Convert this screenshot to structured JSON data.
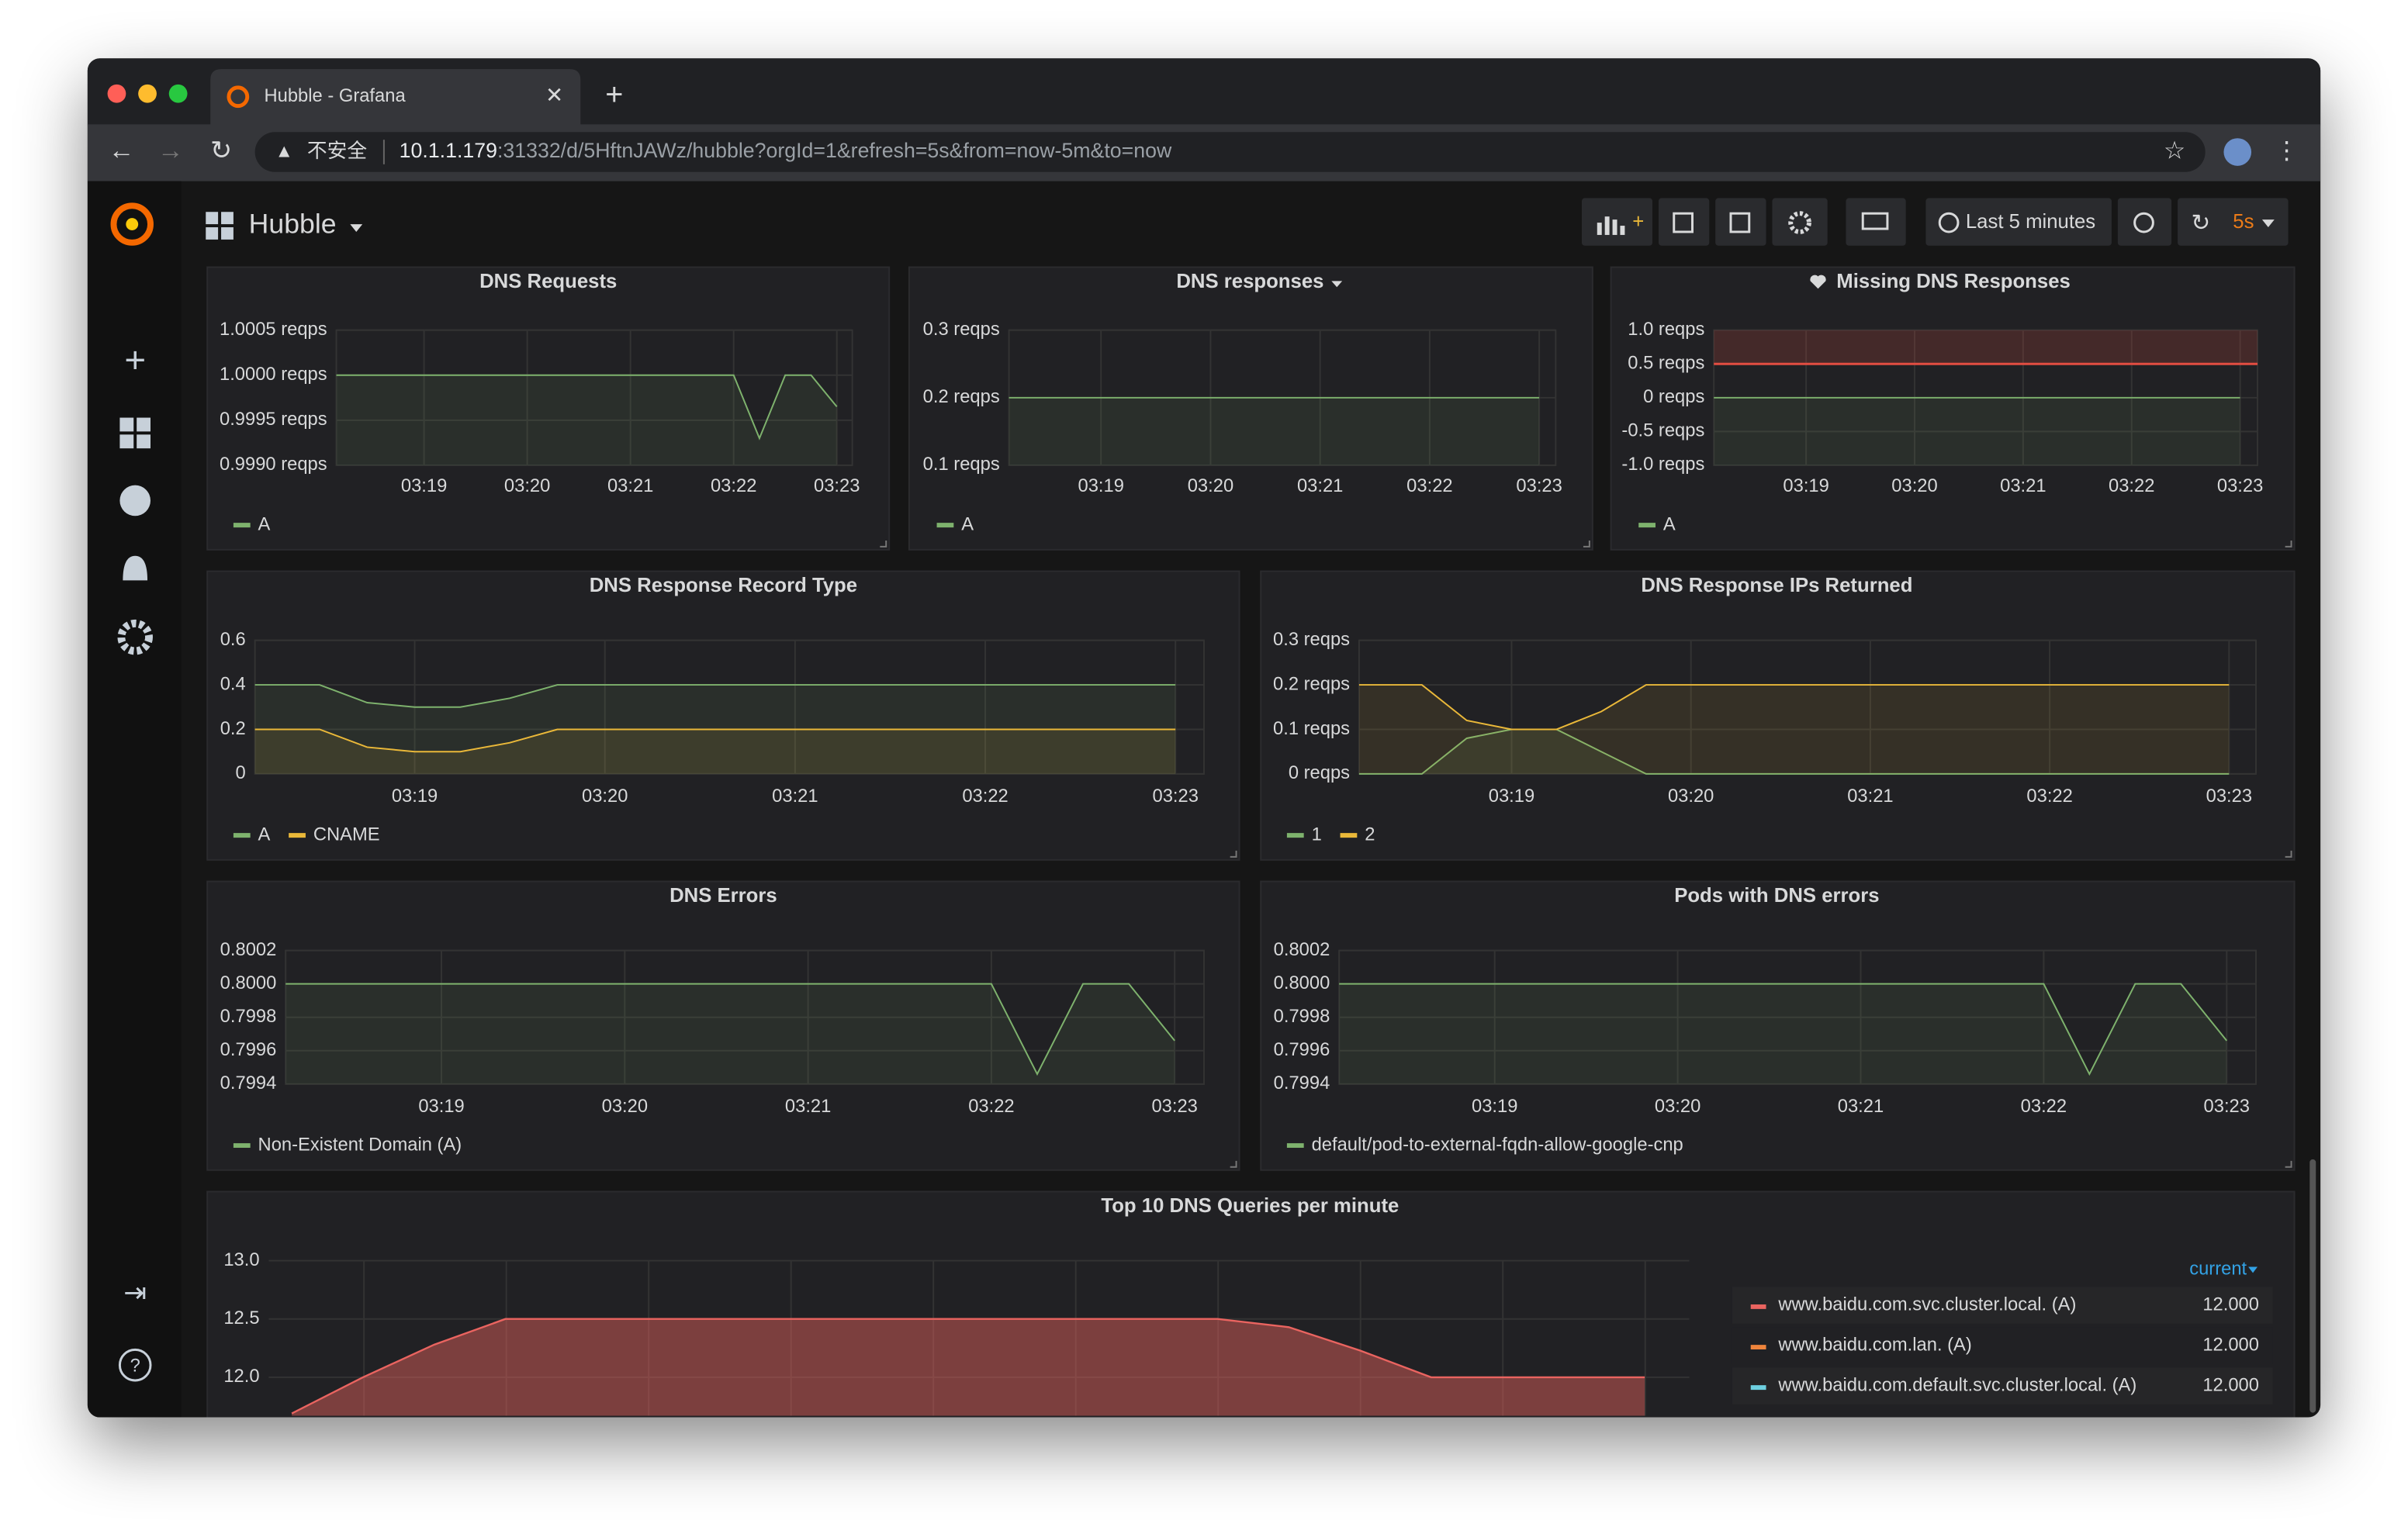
{
  "browser": {
    "tab_title": "Hubble - Grafana",
    "security": "不安全",
    "url_host": "10.1.1.179",
    "url_rest": ":31332/d/5HftnJAWz/hubble?orgId=1&refresh=5s&from=now-5m&to=now"
  },
  "dashboard": {
    "title": "Hubble",
    "time_range": "Last 5 minutes",
    "refresh": "5s"
  },
  "chart_data": [
    {
      "type": "line",
      "title": "DNS Requests",
      "xlim": [
        198.15,
        203.15
      ],
      "ylim": [
        0.999,
        1.0005
      ],
      "xticks": [
        {
          "value": 199,
          "label": "03:19"
        },
        {
          "value": 200,
          "label": "03:20"
        },
        {
          "value": 201,
          "label": "03:21"
        },
        {
          "value": 202,
          "label": "03:22"
        },
        {
          "value": 203,
          "label": "03:23"
        }
      ],
      "yticks": [
        {
          "value": 1.0005,
          "label": "1.0005 reqps"
        },
        {
          "value": 1.0,
          "label": "1.0000 reqps"
        },
        {
          "value": 0.9995,
          "label": "0.9995 reqps"
        },
        {
          "value": 0.999,
          "label": "0.9990 reqps"
        }
      ],
      "x": [
        198.15,
        202,
        202.25,
        202.5,
        202.75,
        203
      ],
      "series": [
        {
          "name": "A",
          "color": "#7eb26d",
          "values": [
            1.0,
            1.0,
            0.9993,
            1.0,
            1.0,
            0.99965
          ]
        }
      ]
    },
    {
      "type": "line",
      "title": "DNS responses",
      "xlim": [
        198.16,
        203.15
      ],
      "ylim": [
        0.1,
        0.3
      ],
      "xticks": [
        {
          "value": 199,
          "label": "03:19"
        },
        {
          "value": 200,
          "label": "03:20"
        },
        {
          "value": 201,
          "label": "03:21"
        },
        {
          "value": 202,
          "label": "03:22"
        },
        {
          "value": 203,
          "label": "03:23"
        }
      ],
      "yticks": [
        {
          "value": 0.3,
          "label": "0.3 reqps"
        },
        {
          "value": 0.2,
          "label": "0.2 reqps"
        },
        {
          "value": 0.1,
          "label": "0.1 reqps"
        }
      ],
      "x": [
        198.16,
        203
      ],
      "series": [
        {
          "name": "A",
          "color": "#7eb26d",
          "values": [
            0.2,
            0.2
          ]
        }
      ]
    },
    {
      "type": "line",
      "title": "Missing DNS Responses",
      "xlim": [
        198.15,
        203.16
      ],
      "ylim": [
        -1.0,
        1.0
      ],
      "xticks": [
        {
          "value": 199,
          "label": "03:19"
        },
        {
          "value": 200,
          "label": "03:20"
        },
        {
          "value": 201,
          "label": "03:21"
        },
        {
          "value": 202,
          "label": "03:22"
        },
        {
          "value": 203,
          "label": "03:23"
        }
      ],
      "yticks": [
        {
          "value": 1.0,
          "label": "1.0 reqps"
        },
        {
          "value": 0.5,
          "label": "0.5 reqps"
        },
        {
          "value": 0,
          "label": "0 reqps"
        },
        {
          "value": -0.5,
          "label": "-0.5 reqps"
        },
        {
          "value": -1.0,
          "label": "-1.0 reqps"
        }
      ],
      "threshold": {
        "value": 0.5,
        "color": "#e24d42"
      },
      "x": [
        198.15,
        203
      ],
      "series": [
        {
          "name": "A",
          "color": "#7eb26d",
          "values": [
            0,
            0
          ]
        }
      ]
    },
    {
      "type": "line",
      "title": "DNS Response Record Type",
      "xlim": [
        198.16,
        203.15
      ],
      "ylim": [
        0,
        0.6
      ],
      "xticks": [
        {
          "value": 199,
          "label": "03:19"
        },
        {
          "value": 200,
          "label": "03:20"
        },
        {
          "value": 201,
          "label": "03:21"
        },
        {
          "value": 202,
          "label": "03:22"
        },
        {
          "value": 203,
          "label": "03:23"
        }
      ],
      "yticks": [
        0.6,
        0.4,
        0.2,
        0
      ],
      "x": [
        198.16,
        198.5,
        198.75,
        199,
        199.24,
        199.5,
        199.75,
        203
      ],
      "series": [
        {
          "name": "A",
          "color": "#7eb26d",
          "values": [
            0.4,
            0.4,
            0.32,
            0.3,
            0.3,
            0.34,
            0.4,
            0.4
          ]
        },
        {
          "name": "CNAME",
          "color": "#eab839",
          "values": [
            0.2,
            0.2,
            0.12,
            0.1,
            0.1,
            0.14,
            0.2,
            0.2
          ]
        }
      ]
    },
    {
      "type": "line",
      "title": "DNS Response IPs Returned",
      "xlim": [
        198.15,
        203.15
      ],
      "ylim": [
        0,
        0.3
      ],
      "xticks": [
        {
          "value": 199,
          "label": "03:19"
        },
        {
          "value": 200,
          "label": "03:20"
        },
        {
          "value": 201,
          "label": "03:21"
        },
        {
          "value": 202,
          "label": "03:22"
        },
        {
          "value": 203,
          "label": "03:23"
        }
      ],
      "yticks": [
        {
          "value": 0.3,
          "label": "0.3 reqps"
        },
        {
          "value": 0.2,
          "label": "0.2 reqps"
        },
        {
          "value": 0.1,
          "label": "0.1 reqps"
        },
        {
          "value": 0,
          "label": "0 reqps"
        }
      ],
      "x": [
        198.15,
        198.5,
        198.75,
        199,
        199.25,
        199.5,
        199.75,
        203
      ],
      "series": [
        {
          "name": "1",
          "color": "#7eb26d",
          "values": [
            0,
            0,
            0.08,
            0.1,
            0.1,
            0.05,
            0,
            0
          ]
        },
        {
          "name": "2",
          "color": "#eab839",
          "values": [
            0.2,
            0.2,
            0.12,
            0.1,
            0.1,
            0.14,
            0.2,
            0.2
          ]
        }
      ]
    },
    {
      "type": "line",
      "title": "DNS Errors",
      "xlim": [
        198.15,
        203.16
      ],
      "ylim": [
        0.7994,
        0.8002
      ],
      "xticks": [
        {
          "value": 199,
          "label": "03:19"
        },
        {
          "value": 200,
          "label": "03:20"
        },
        {
          "value": 201,
          "label": "03:21"
        },
        {
          "value": 202,
          "label": "03:22"
        },
        {
          "value": 203,
          "label": "03:23"
        }
      ],
      "yticks": [
        0.8002,
        {
          "value": 0.8,
          "label": "0.8000"
        },
        0.7998,
        0.7996,
        0.7994
      ],
      "x": [
        198.15,
        202,
        202.25,
        202.5,
        202.75,
        203
      ],
      "series": [
        {
          "name": "Non-Existent Domain (A)",
          "color": "#7eb26d",
          "values": [
            0.8,
            0.8,
            0.79946,
            0.8,
            0.8,
            0.79966
          ]
        }
      ]
    },
    {
      "type": "line",
      "title": "Pods with DNS errors",
      "xlim": [
        198.15,
        203.16
      ],
      "ylim": [
        0.7994,
        0.8002
      ],
      "xticks": [
        {
          "value": 199,
          "label": "03:19"
        },
        {
          "value": 200,
          "label": "03:20"
        },
        {
          "value": 201,
          "label": "03:21"
        },
        {
          "value": 202,
          "label": "03:22"
        },
        {
          "value": 203,
          "label": "03:23"
        }
      ],
      "yticks": [
        0.8002,
        {
          "value": 0.8,
          "label": "0.8000"
        },
        0.7998,
        0.7996,
        0.7994
      ],
      "x": [
        198.15,
        202,
        202.25,
        202.5,
        202.75,
        203
      ],
      "series": [
        {
          "name": "default/pod-to-external-fqdn-allow-google-cnp",
          "color": "#7eb26d",
          "values": [
            0.8,
            0.8,
            0.79946,
            0.8,
            0.8,
            0.79966
          ]
        }
      ]
    },
    {
      "type": "area",
      "title": "Top 10 DNS Queries per minute",
      "ylim": [
        11.67,
        13.0
      ],
      "yticks": [
        {
          "value": 13.0,
          "label": "13.0"
        },
        12.5,
        {
          "value": 12.0,
          "label": "12.0"
        }
      ],
      "categories": [
        null,
        null,
        null,
        null,
        null,
        null,
        null,
        null,
        null,
        null,
        null,
        null,
        null,
        null,
        null,
        null,
        null,
        null,
        null,
        null
      ],
      "legend_column": "current",
      "series": [
        {
          "name": "www.baidu.com.svc.cluster.local. (A)",
          "color": "#ea6460",
          "current": {
            "value": 12,
            "label": "12.000"
          },
          "values": [
            11.69,
            12.0,
            12.28,
            12.5,
            12.5,
            12.5,
            12.5,
            12.5,
            12.5,
            12.5,
            12.5,
            12.5,
            12.5,
            12.5,
            12.43,
            12.23,
            12.0,
            12.0,
            12.0,
            12.0
          ]
        },
        {
          "name": "www.baidu.com.lan. (A)",
          "color": "#ef843c",
          "current": {
            "value": 12,
            "label": "12.000"
          }
        },
        {
          "name": "www.baidu.com.default.svc.cluster.local. (A)",
          "color": "#6ed0e0",
          "current": {
            "value": 12,
            "label": "12.000"
          }
        }
      ]
    }
  ]
}
